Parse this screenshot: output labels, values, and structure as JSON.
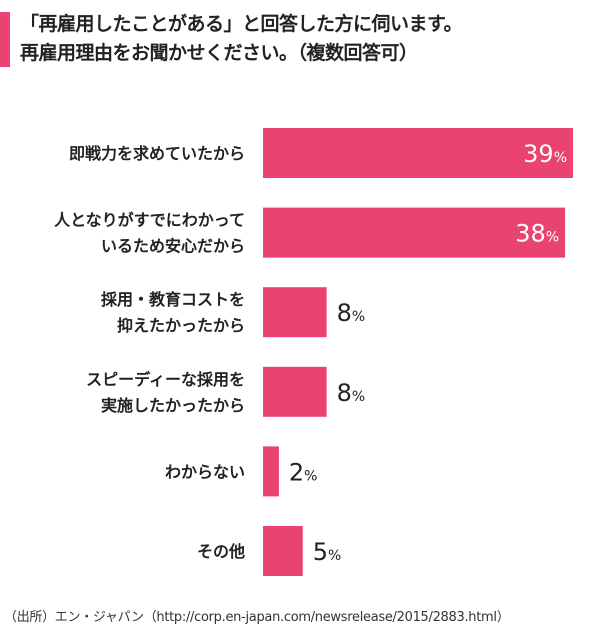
{
  "title": [
    "「再雇用したことがある」と回答した方に伺います。",
    "再雇用理由をお聞かせください。（複数回答可）"
  ],
  "source": "（出所）エン・ジャパン（http://corp.en-japan.com/newsrelease/2015/2883.html）",
  "colors": {
    "bar": "#e8446f",
    "inner_label": "#ffffff",
    "outer_label": "#222222"
  },
  "chart_data": {
    "type": "bar",
    "orientation": "horizontal",
    "title": "「再雇用したことがある」と回答した方に伺います。再雇用理由をお聞かせください。（複数回答可）",
    "categories": [
      [
        "即戦力を求めていたから"
      ],
      [
        "人となりがすでにわかって",
        "いるため安心だから"
      ],
      [
        "採用・教育コストを",
        "抑えたかったから"
      ],
      [
        "スピーディーな採用を",
        "実施したかったから"
      ],
      [
        "わからない"
      ],
      [
        "その他"
      ]
    ],
    "values": [
      39,
      38,
      8,
      8,
      2,
      5
    ],
    "unit": "%",
    "xlim": [
      0,
      39
    ],
    "xlabel": "",
    "ylabel": "",
    "grid": false
  }
}
